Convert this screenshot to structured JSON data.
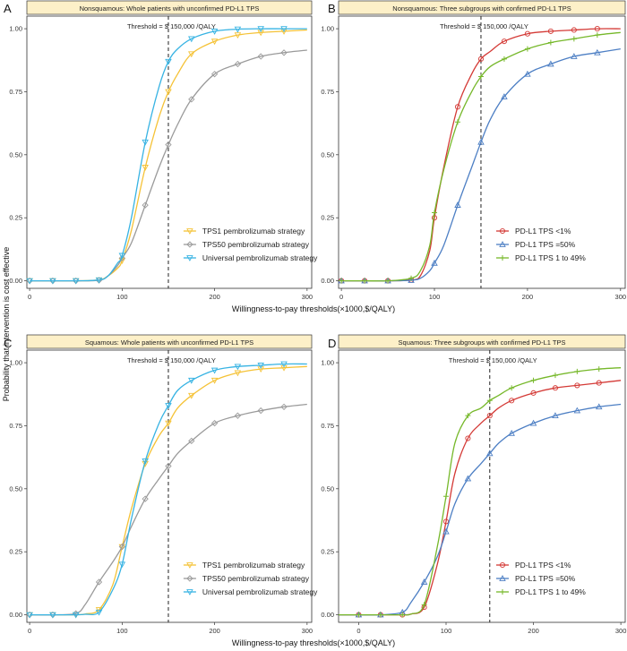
{
  "figure": {
    "xlabel": "Willingness-to-pay thresholds(×1000,$/QALY)",
    "ylabel": "Probability that intervention is cost effective"
  },
  "chart_data": [
    {
      "type": "line",
      "letter": "A",
      "title": "Nonsquamous: Whole patients with unconfirmed PD-L1 TPS",
      "threshold_label": "Threshold = $ 150,000 /QALY",
      "threshold": 150,
      "xlim": [
        -3,
        305
      ],
      "ylim": [
        -0.03,
        1.05
      ],
      "xticks": [
        0,
        100,
        200,
        300
      ],
      "yticks": [
        0,
        0.25,
        0.5,
        0.75,
        1.0
      ],
      "ytick_labels": [
        "0.00",
        "0.25",
        "0.50",
        "0.75",
        "1.00"
      ],
      "legend_position": "bottom-right",
      "series": [
        {
          "name": "TPS1 pembrolizumab strategy",
          "color": "#f5c236",
          "marker": "down",
          "x": [
            0,
            25,
            50,
            75,
            85,
            95,
            100,
            110,
            125,
            140,
            150,
            160,
            175,
            200,
            225,
            250,
            275,
            300
          ],
          "y": [
            0,
            0,
            0,
            0.003,
            0.02,
            0.05,
            0.08,
            0.2,
            0.45,
            0.65,
            0.75,
            0.82,
            0.9,
            0.95,
            0.975,
            0.985,
            0.99,
            0.995
          ],
          "markers_x": [
            0,
            25,
            50,
            75,
            100,
            125,
            150,
            175,
            200,
            225,
            250,
            275
          ]
        },
        {
          "name": "TPS50 pembrolizumab strategy",
          "color": "#9a9a9a",
          "marker": "diamond",
          "x": [
            0,
            25,
            50,
            75,
            85,
            95,
            100,
            110,
            125,
            140,
            150,
            160,
            175,
            200,
            225,
            250,
            275,
            300
          ],
          "y": [
            0,
            0,
            0,
            0.002,
            0.02,
            0.06,
            0.09,
            0.15,
            0.3,
            0.45,
            0.54,
            0.62,
            0.72,
            0.82,
            0.86,
            0.89,
            0.905,
            0.915
          ],
          "markers_x": [
            0,
            25,
            50,
            75,
            100,
            125,
            150,
            175,
            200,
            225,
            250,
            275
          ]
        },
        {
          "name": "Universal pembrolizumab strategy",
          "color": "#37b3e3",
          "marker": "down",
          "x": [
            0,
            25,
            50,
            75,
            85,
            95,
            100,
            110,
            125,
            140,
            150,
            160,
            175,
            200,
            225,
            250,
            275,
            300
          ],
          "y": [
            0,
            0,
            0,
            0.003,
            0.02,
            0.07,
            0.1,
            0.25,
            0.55,
            0.77,
            0.87,
            0.92,
            0.96,
            0.99,
            0.998,
            1.0,
            1.0,
            1.0
          ],
          "markers_x": [
            0,
            25,
            50,
            75,
            100,
            125,
            150,
            175,
            200,
            225,
            250,
            275
          ]
        }
      ]
    },
    {
      "type": "line",
      "letter": "B",
      "title": "Nonsquamous: Three subgroups with confirmed PD-L1 TPS",
      "threshold_label": "Threshold = $ 150,000 /QALY",
      "threshold": 150,
      "xlim": [
        -3,
        305
      ],
      "ylim": [
        -0.03,
        1.05
      ],
      "xticks": [
        0,
        100,
        200,
        300
      ],
      "yticks": [
        0,
        0.25,
        0.5,
        0.75,
        1.0
      ],
      "ytick_labels": [
        "0.00",
        "0.25",
        "0.50",
        "0.75",
        "1.00"
      ],
      "legend_position": "bottom-right",
      "series": [
        {
          "name": "PD-L1 TPS <1%",
          "color": "#d43a36",
          "marker": "circle",
          "x": [
            0,
            25,
            50,
            75,
            85,
            95,
            100,
            110,
            125,
            140,
            150,
            160,
            175,
            200,
            225,
            250,
            275,
            300
          ],
          "y": [
            0,
            0,
            0,
            0.003,
            0.02,
            0.12,
            0.25,
            0.45,
            0.69,
            0.82,
            0.88,
            0.91,
            0.95,
            0.98,
            0.99,
            0.995,
            1.0,
            1.0
          ],
          "markers_x": [
            0,
            25,
            50,
            75,
            100,
            125,
            150,
            175,
            200,
            225,
            250,
            275
          ]
        },
        {
          "name": "PD-L1 TPS =50%",
          "color": "#4d7fc4",
          "marker": "up",
          "x": [
            0,
            25,
            50,
            75,
            85,
            95,
            100,
            110,
            125,
            140,
            150,
            160,
            175,
            200,
            225,
            250,
            275,
            300
          ],
          "y": [
            0,
            0,
            0,
            0.002,
            0.01,
            0.04,
            0.07,
            0.14,
            0.3,
            0.45,
            0.55,
            0.64,
            0.73,
            0.82,
            0.86,
            0.89,
            0.905,
            0.92
          ],
          "markers_x": [
            0,
            25,
            50,
            75,
            100,
            125,
            150,
            175,
            200,
            225,
            250,
            275
          ]
        },
        {
          "name": "PD-L1 TPS 1 to 49%",
          "color": "#76b82a",
          "marker": "plus",
          "x": [
            0,
            25,
            50,
            75,
            85,
            95,
            100,
            110,
            125,
            140,
            150,
            160,
            175,
            200,
            225,
            250,
            275,
            300
          ],
          "y": [
            0,
            0,
            0,
            0.01,
            0.04,
            0.14,
            0.27,
            0.44,
            0.63,
            0.75,
            0.81,
            0.85,
            0.88,
            0.92,
            0.945,
            0.96,
            0.975,
            0.985
          ],
          "markers_x": [
            0,
            25,
            50,
            75,
            100,
            125,
            150,
            175,
            200,
            225,
            250,
            275
          ]
        }
      ]
    },
    {
      "type": "line",
      "letter": "C",
      "title": "Squamous: Whole patients with unconfirmed PD-L1 TPS",
      "threshold_label": "Threshold = $ 150,000 /QALY",
      "threshold": 150,
      "xlim": [
        -3,
        305
      ],
      "ylim": [
        -0.03,
        1.05
      ],
      "xticks": [
        0,
        100,
        200,
        300
      ],
      "yticks": [
        0,
        0.25,
        0.5,
        0.75,
        1.0
      ],
      "ytick_labels": [
        "0.00",
        "0.25",
        "0.50",
        "0.75",
        "1.00"
      ],
      "legend_position": "bottom-right",
      "series": [
        {
          "name": "TPS1 pembrolizumab strategy",
          "color": "#f5c236",
          "marker": "down",
          "x": [
            0,
            25,
            50,
            60,
            75,
            90,
            100,
            110,
            125,
            140,
            150,
            160,
            175,
            200,
            225,
            250,
            275,
            300
          ],
          "y": [
            0,
            0,
            0,
            0.003,
            0.02,
            0.12,
            0.27,
            0.42,
            0.6,
            0.71,
            0.76,
            0.82,
            0.87,
            0.93,
            0.96,
            0.975,
            0.98,
            0.985
          ],
          "markers_x": [
            0,
            25,
            50,
            75,
            100,
            125,
            150,
            175,
            200,
            225,
            250,
            275
          ]
        },
        {
          "name": "TPS50 pembrolizumab strategy",
          "color": "#9a9a9a",
          "marker": "diamond",
          "x": [
            0,
            25,
            50,
            60,
            75,
            90,
            100,
            110,
            125,
            140,
            150,
            160,
            175,
            200,
            225,
            250,
            275,
            300
          ],
          "y": [
            0,
            0,
            0.005,
            0.04,
            0.13,
            0.21,
            0.27,
            0.35,
            0.46,
            0.54,
            0.59,
            0.64,
            0.69,
            0.76,
            0.79,
            0.81,
            0.825,
            0.835
          ],
          "markers_x": [
            0,
            25,
            50,
            75,
            100,
            125,
            150,
            175,
            200,
            225,
            250,
            275
          ]
        },
        {
          "name": "Universal pembrolizumab strategy",
          "color": "#37b3e3",
          "marker": "down",
          "x": [
            0,
            25,
            50,
            60,
            75,
            90,
            100,
            110,
            125,
            140,
            150,
            160,
            175,
            200,
            225,
            250,
            275,
            300
          ],
          "y": [
            0,
            0,
            0,
            0.002,
            0.01,
            0.1,
            0.2,
            0.38,
            0.61,
            0.76,
            0.83,
            0.89,
            0.93,
            0.97,
            0.985,
            0.99,
            0.995,
            0.995
          ],
          "markers_x": [
            0,
            25,
            50,
            75,
            100,
            125,
            150,
            175,
            200,
            225,
            250,
            275
          ]
        }
      ]
    },
    {
      "type": "line",
      "letter": "D",
      "title": "Squamous: Three subgroups with confirmed PD-L1 TPS",
      "threshold_label": "Threshold = $ 150,000 /QALY",
      "threshold": 150,
      "xlim": [
        -23,
        305
      ],
      "ylim": [
        -0.03,
        1.05
      ],
      "xticks": [
        0,
        100,
        200,
        300
      ],
      "yticks": [
        0,
        0.25,
        0.5,
        0.75,
        1.0
      ],
      "ytick_labels": [
        "0.00",
        "0.25",
        "0.50",
        "0.75",
        "1.00"
      ],
      "legend_position": "bottom-right",
      "series": [
        {
          "name": "PD-L1 TPS <1%",
          "color": "#d43a36",
          "marker": "circle",
          "x": [
            -23,
            0,
            25,
            50,
            60,
            75,
            90,
            100,
            110,
            125,
            140,
            150,
            160,
            175,
            200,
            225,
            250,
            275,
            300
          ],
          "y": [
            0,
            0,
            0,
            0,
            0.003,
            0.03,
            0.2,
            0.37,
            0.56,
            0.7,
            0.76,
            0.79,
            0.82,
            0.85,
            0.88,
            0.9,
            0.91,
            0.92,
            0.93
          ],
          "markers_x": [
            0,
            25,
            50,
            75,
            100,
            125,
            150,
            175,
            200,
            225,
            250,
            275
          ]
        },
        {
          "name": "PD-L1 TPS =50%",
          "color": "#4d7fc4",
          "marker": "up",
          "x": [
            -23,
            0,
            25,
            50,
            60,
            75,
            90,
            100,
            110,
            125,
            140,
            150,
            160,
            175,
            200,
            225,
            250,
            275,
            300
          ],
          "y": [
            0,
            0,
            0,
            0.01,
            0.05,
            0.13,
            0.23,
            0.33,
            0.44,
            0.54,
            0.6,
            0.64,
            0.68,
            0.72,
            0.76,
            0.79,
            0.81,
            0.825,
            0.835
          ],
          "markers_x": [
            0,
            25,
            50,
            75,
            100,
            125,
            150,
            175,
            200,
            225,
            250,
            275
          ]
        },
        {
          "name": "PD-L1 TPS 1 to 49%",
          "color": "#76b82a",
          "marker": "plus",
          "x": [
            -23,
            0,
            25,
            50,
            60,
            75,
            90,
            100,
            110,
            125,
            140,
            150,
            160,
            175,
            200,
            225,
            250,
            275,
            300
          ],
          "y": [
            0,
            0,
            0,
            0,
            0.003,
            0.04,
            0.27,
            0.47,
            0.68,
            0.79,
            0.82,
            0.85,
            0.87,
            0.9,
            0.93,
            0.95,
            0.965,
            0.975,
            0.98
          ],
          "markers_x": [
            0,
            25,
            50,
            75,
            100,
            125,
            150,
            175,
            200,
            225,
            250,
            275
          ]
        }
      ]
    }
  ]
}
